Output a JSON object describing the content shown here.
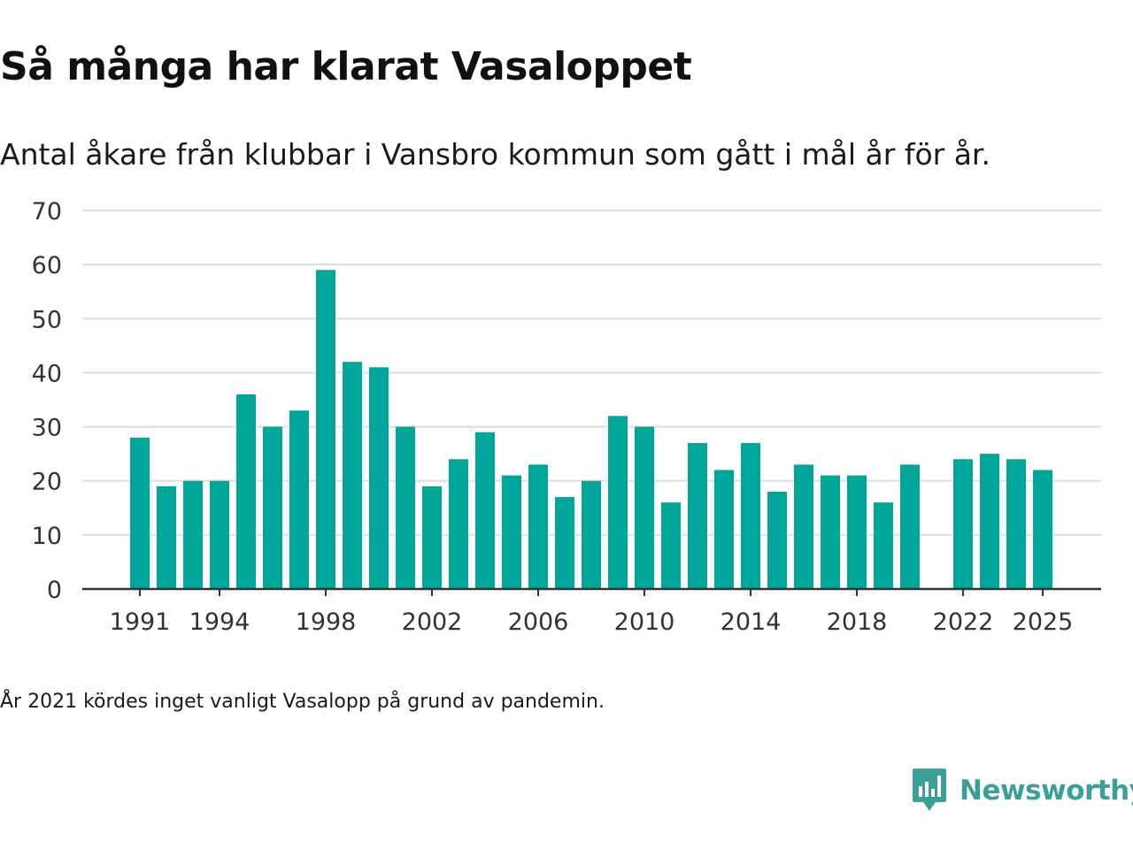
{
  "header": {
    "title": "Så många har klarat Vasaloppet",
    "subtitle": "Antal åkare från klubbar i Vansbro kommun som gått i mål år för år."
  },
  "footer": {
    "note": "År 2021 kördes inget vanligt Vasalopp på grund av pandemin.",
    "brand": "Newsworthy"
  },
  "colors": {
    "bar": "#00a69a",
    "grid": "#dddddd",
    "axis": "#333333",
    "tick_text": "#333333",
    "brand": "#3c9f97"
  },
  "chart_data": {
    "type": "bar",
    "title": "Så många har klarat Vasaloppet",
    "subtitle": "Antal åkare från klubbar i Vansbro kommun som gått i mål år för år.",
    "xlabel": "",
    "ylabel": "",
    "ylim": [
      0,
      70
    ],
    "yticks": [
      0,
      10,
      20,
      30,
      40,
      50,
      60,
      70
    ],
    "grid": true,
    "legend": "none",
    "xticks": [
      1991,
      1994,
      1998,
      2002,
      2006,
      2010,
      2014,
      2018,
      2022,
      2025
    ],
    "categories": [
      1991,
      1992,
      1993,
      1994,
      1995,
      1996,
      1997,
      1998,
      1999,
      2000,
      2001,
      2002,
      2003,
      2004,
      2005,
      2006,
      2007,
      2008,
      2009,
      2010,
      2011,
      2012,
      2013,
      2014,
      2015,
      2016,
      2017,
      2018,
      2019,
      2020,
      2021,
      2022,
      2023,
      2024,
      2025
    ],
    "values": [
      28,
      19,
      20,
      20,
      36,
      30,
      33,
      59,
      42,
      41,
      30,
      19,
      24,
      29,
      21,
      23,
      17,
      20,
      32,
      30,
      16,
      27,
      22,
      27,
      18,
      23,
      21,
      21,
      16,
      23,
      null,
      24,
      25,
      24,
      22
    ]
  }
}
